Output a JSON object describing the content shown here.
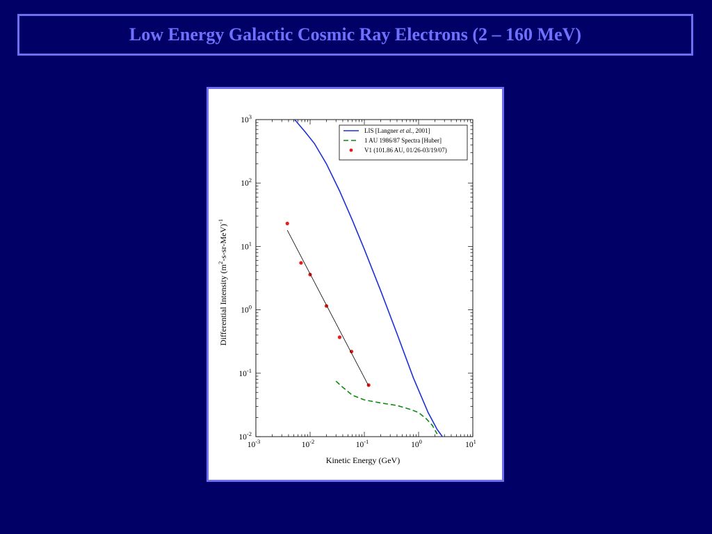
{
  "slide": {
    "title": "Low Energy Galactic Cosmic Ray Electrons (2 – 160 MeV)"
  },
  "chart_data": {
    "type": "line",
    "xlabel": "Kinetic Energy (GeV)",
    "ylabel": "Differential Intensity (m",
    "ylabel_sup": "2",
    "ylabel_mid": "-s-sr-MeV)",
    "ylabel_sup2": "-1",
    "x_scale": "log",
    "y_scale": "log",
    "xlim": [
      0.001,
      10
    ],
    "ylim": [
      0.01,
      1000
    ],
    "x_ticks": [
      {
        "value": 0.001,
        "base": "10",
        "exp": "-3"
      },
      {
        "value": 0.01,
        "base": "10",
        "exp": "-2"
      },
      {
        "value": 0.1,
        "base": "10",
        "exp": "-1"
      },
      {
        "value": 1,
        "base": "10",
        "exp": "0"
      },
      {
        "value": 10,
        "base": "10",
        "exp": "1"
      }
    ],
    "y_ticks": [
      {
        "value": 0.01,
        "base": "10",
        "exp": "-2"
      },
      {
        "value": 0.1,
        "base": "10",
        "exp": "-1"
      },
      {
        "value": 1,
        "base": "10",
        "exp": "0"
      },
      {
        "value": 10,
        "base": "10",
        "exp": "1"
      },
      {
        "value": 100,
        "base": "10",
        "exp": "2"
      },
      {
        "value": 1000,
        "base": "10",
        "exp": "3"
      }
    ],
    "legend_position": "top-right",
    "series": [
      {
        "name": "LIS  [Langner et al., 2001]",
        "legend_parts": [
          "LIS  [Langner ",
          "et al.",
          ", 2001]"
        ],
        "style": "solid",
        "color": "#1a2fd6",
        "x": [
          0.0052,
          0.008,
          0.012,
          0.02,
          0.035,
          0.06,
          0.1,
          0.2,
          0.4,
          0.8,
          1.5,
          2.2,
          2.8
        ],
        "y": [
          1000,
          650,
          420,
          200,
          75,
          26,
          9.0,
          2.0,
          0.42,
          0.085,
          0.024,
          0.013,
          0.0098
        ]
      },
      {
        "name": "1 AU 1986/87 Spectra  [Huber]",
        "style": "dashed",
        "color": "#0a8a0a",
        "x": [
          0.03,
          0.04,
          0.06,
          0.1,
          0.2,
          0.4,
          0.7,
          1.0,
          1.4,
          1.8,
          2.2
        ],
        "y": [
          0.075,
          0.06,
          0.045,
          0.038,
          0.034,
          0.031,
          0.027,
          0.024,
          0.019,
          0.015,
          0.011
        ]
      },
      {
        "name": "V1 (101.86 AU, 01/26-03/19/07)",
        "style": "points",
        "color": "#e81c1c",
        "x": [
          0.0038,
          0.0068,
          0.01,
          0.02,
          0.035,
          0.058,
          0.12
        ],
        "y": [
          23,
          5.5,
          3.6,
          1.15,
          0.37,
          0.22,
          0.065
        ]
      },
      {
        "name": "",
        "style": "fit",
        "color": "#000000",
        "x": [
          0.0038,
          0.12
        ],
        "y": [
          18,
          0.063
        ]
      }
    ]
  }
}
